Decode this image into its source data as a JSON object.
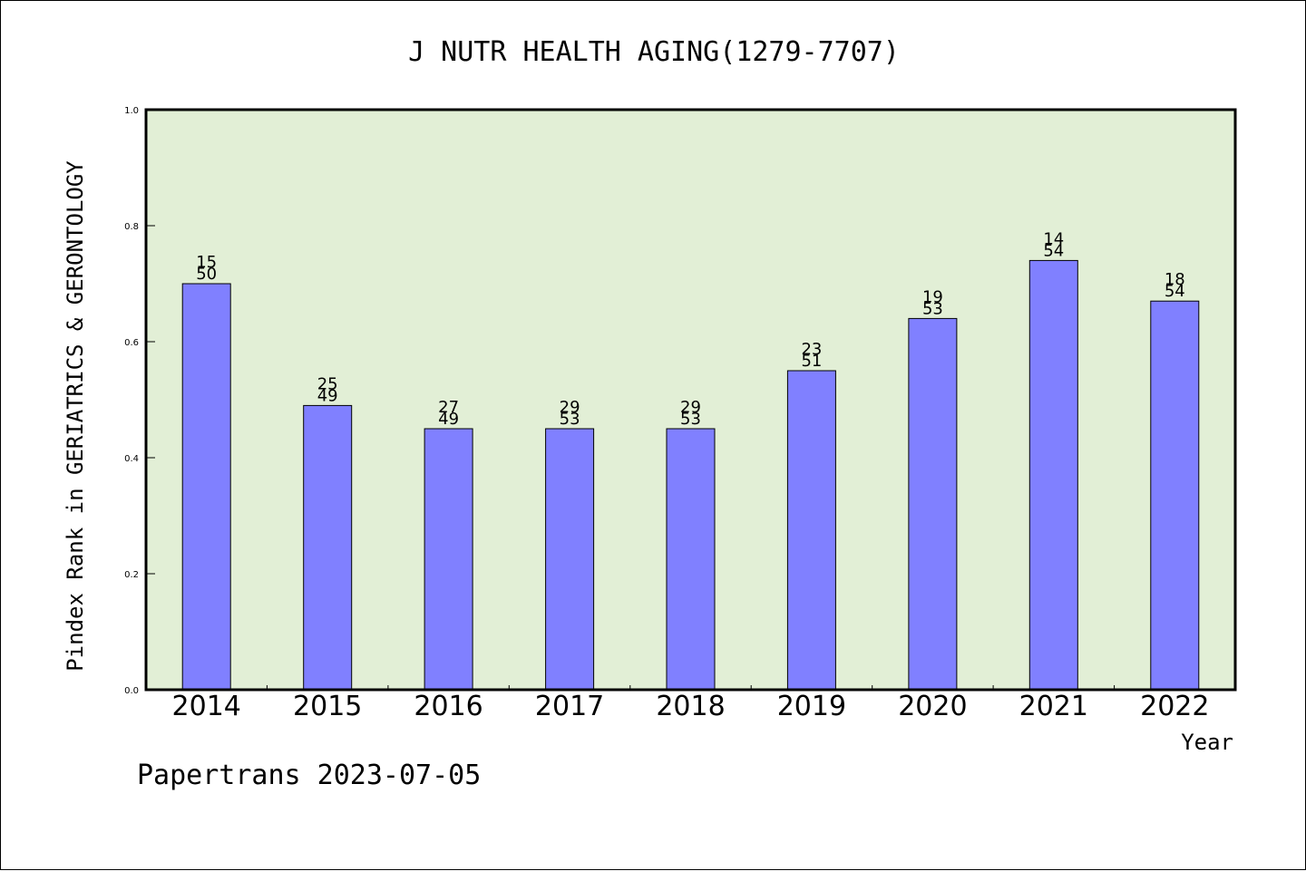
{
  "colors": {
    "plot_background": "#e2efd6",
    "bar_fill": "#8080ff",
    "bar_stroke": "#000000"
  },
  "footer": "Papertrans 2023-07-05",
  "chart_data": {
    "type": "bar",
    "title": "J NUTR HEALTH AGING(1279-7707)",
    "xlabel": "Year",
    "ylabel": "Pindex Rank in GERIATRICS & GERONTOLOGY",
    "ylim": [
      0,
      1.0
    ],
    "yticks": [
      "0.0",
      "0.2",
      "0.4",
      "0.6",
      "0.8",
      "1.0"
    ],
    "grid": false,
    "categories": [
      "2014",
      "2015",
      "2016",
      "2017",
      "2018",
      "2019",
      "2020",
      "2021",
      "2022"
    ],
    "values": [
      0.7,
      0.49,
      0.45,
      0.45,
      0.45,
      0.55,
      0.64,
      0.74,
      0.67
    ],
    "rank": [
      "15",
      "25",
      "27",
      "29",
      "29",
      "23",
      "19",
      "14",
      "18"
    ],
    "total": [
      "50",
      "49",
      "49",
      "53",
      "53",
      "51",
      "53",
      "54",
      "54"
    ]
  }
}
